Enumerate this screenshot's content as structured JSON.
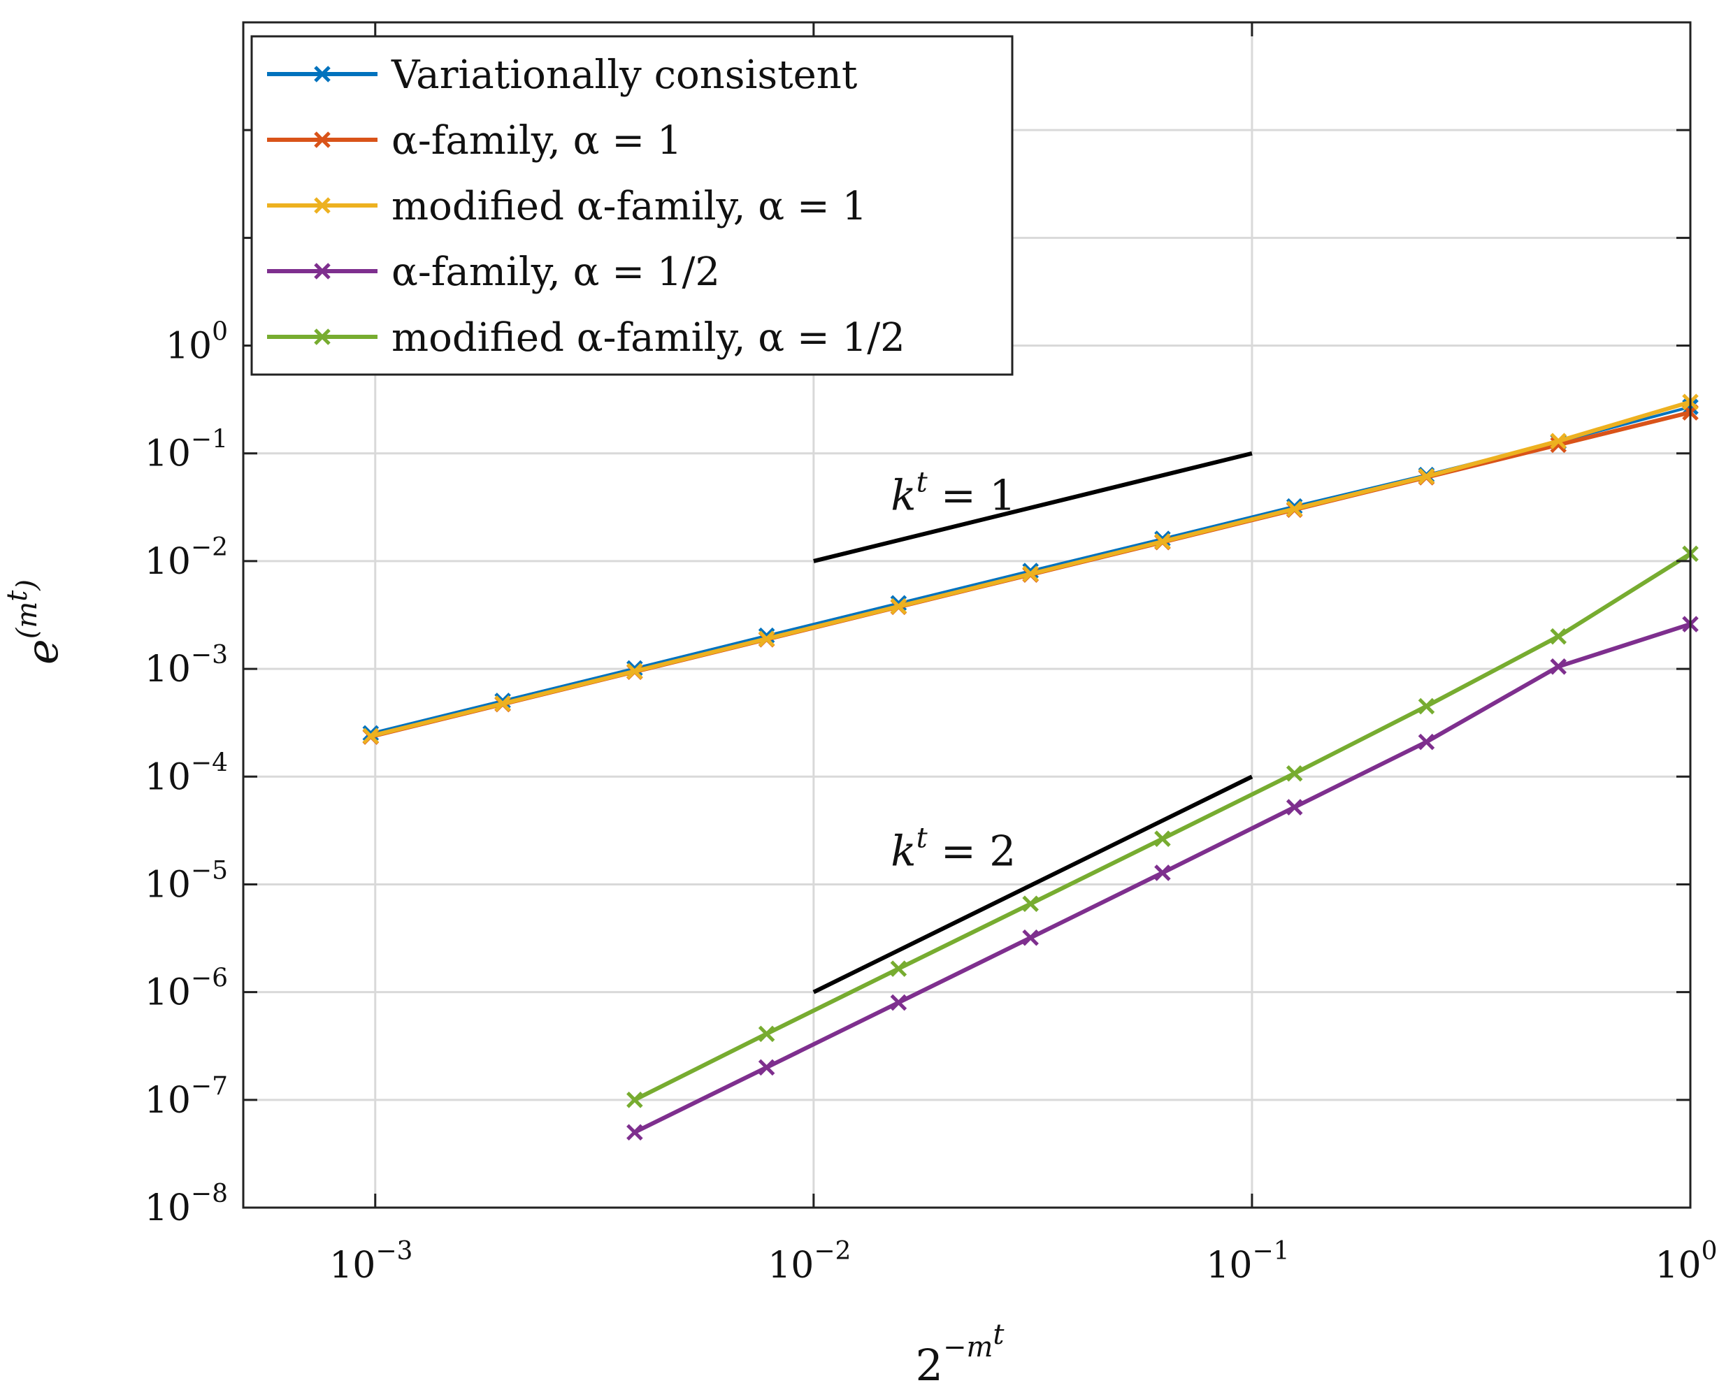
{
  "chart_data": {
    "type": "line",
    "title": "",
    "xlabel": "2^{-m^t}",
    "xlabel_base": "2",
    "xlabel_exp": "−m",
    "xlabel_exp_sup": "t",
    "ylabel": "e^{(m^t)}",
    "ylabel_base": "e",
    "ylabel_exp": "(m",
    "ylabel_exp_sup": "t",
    "ylabel_exp_close": ")",
    "xscale": "log",
    "yscale": "log",
    "xlim": [
      0.0005,
      1
    ],
    "ylim": [
      1e-08,
      1000
    ],
    "grid": true,
    "legend_position": "top-left",
    "x_ticks": [
      {
        "value": 0.001,
        "base": "10",
        "exp": "−3"
      },
      {
        "value": 0.01,
        "base": "10",
        "exp": "−2"
      },
      {
        "value": 0.1,
        "base": "10",
        "exp": "−1"
      },
      {
        "value": 1,
        "base": "10",
        "exp": "0"
      }
    ],
    "y_ticks": [
      {
        "value": 1e-08,
        "base": "10",
        "exp": "−8"
      },
      {
        "value": 1e-07,
        "base": "10",
        "exp": "−7"
      },
      {
        "value": 1e-06,
        "base": "10",
        "exp": "−6"
      },
      {
        "value": 1e-05,
        "base": "10",
        "exp": "−5"
      },
      {
        "value": 0.0001,
        "base": "10",
        "exp": "−4"
      },
      {
        "value": 0.001,
        "base": "10",
        "exp": "−3"
      },
      {
        "value": 0.01,
        "base": "10",
        "exp": "−2"
      },
      {
        "value": 0.1,
        "base": "10",
        "exp": "−1"
      },
      {
        "value": 1,
        "base": "10",
        "exp": "0"
      }
    ],
    "series": [
      {
        "name": "Variationally consistent",
        "color": "#0072BD",
        "x": [
          0.0009765625,
          0.001953125,
          0.00390625,
          0.0078125,
          0.015625,
          0.03125,
          0.0625,
          0.125,
          0.25,
          0.5,
          1
        ],
        "values": [
          0.000252,
          0.000505,
          0.00101,
          0.00203,
          0.00406,
          0.0081,
          0.0161,
          0.0322,
          0.063,
          0.128,
          0.27
        ]
      },
      {
        "name": "α-family, α = 1",
        "color": "#D95319",
        "x": [
          0.0009765625,
          0.001953125,
          0.00390625,
          0.0078125,
          0.015625,
          0.03125,
          0.0625,
          0.125,
          0.25,
          0.5,
          1
        ],
        "values": [
          0.000235,
          0.00047,
          0.00094,
          0.00188,
          0.00376,
          0.0075,
          0.015,
          0.03,
          0.06,
          0.12,
          0.24
        ]
      },
      {
        "name": "modified α-family, α = 1",
        "color": "#EDB120",
        "x": [
          0.0009765625,
          0.001953125,
          0.00390625,
          0.0078125,
          0.015625,
          0.03125,
          0.0625,
          0.125,
          0.25,
          0.5,
          1
        ],
        "values": [
          0.000238,
          0.000476,
          0.00095,
          0.0019,
          0.0038,
          0.0076,
          0.0152,
          0.0305,
          0.061,
          0.13,
          0.3
        ]
      },
      {
        "name": "α-family, α = 1/2",
        "color": "#7E2F8E",
        "x": [
          0.00390625,
          0.0078125,
          0.015625,
          0.03125,
          0.0625,
          0.125,
          0.25,
          0.5,
          1
        ],
        "values": [
          5e-08,
          2e-07,
          8e-07,
          3.2e-06,
          1.28e-05,
          5.2e-05,
          0.00021,
          0.00105,
          0.0026
        ]
      },
      {
        "name": "modified α-family, α = 1/2",
        "color": "#77AC30",
        "x": [
          0.00390625,
          0.0078125,
          0.015625,
          0.03125,
          0.0625,
          0.125,
          0.25,
          0.5,
          1
        ],
        "values": [
          1e-07,
          4.1e-07,
          1.65e-06,
          6.6e-06,
          2.65e-05,
          0.000107,
          0.00045,
          0.002,
          0.0117
        ]
      }
    ],
    "reference_lines": [
      {
        "label_base": "k",
        "label_sup": "t",
        "label_rest": " = 1",
        "x": [
          0.01,
          0.1
        ],
        "y": [
          0.01,
          0.1
        ],
        "label_at": [
          0.015,
          0.03
        ]
      },
      {
        "label_base": "k",
        "label_sup": "t",
        "label_rest": " = 2",
        "x": [
          0.01,
          0.1
        ],
        "y": [
          1e-06,
          0.0001
        ],
        "label_at": [
          0.015,
          1.5e-05
        ]
      }
    ]
  }
}
